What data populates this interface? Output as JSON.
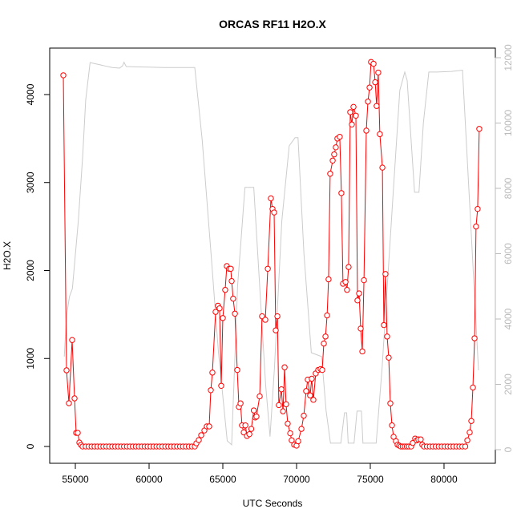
{
  "chart_data": {
    "type": "line",
    "title": "ORCAS RF11 H2O.X",
    "x_label": "UTC Seconds",
    "y_label": "H2O.X",
    "xlim": [
      53260,
      83480
    ],
    "xticks": [
      55000,
      60000,
      65000,
      70000,
      75000,
      80000
    ],
    "ylim": [
      -191,
      4528
    ],
    "yticks": [
      0,
      1000,
      2000,
      3000,
      4000
    ],
    "y2lim": [
      -417,
      12294
    ],
    "y2ticks": [
      0,
      2000,
      4000,
      6000,
      8000,
      10000,
      12000
    ],
    "y2_color": "#bbbbbb",
    "series": [
      {
        "color": "#ff0000",
        "marker": "circle",
        "axis": "y",
        "x": [
          54185,
          54402,
          54565,
          54783,
          54946,
          55054,
          55163,
          55272,
          55380,
          55489,
          55700,
          55900,
          56100,
          56300,
          56500,
          56700,
          56900,
          57100,
          57300,
          57500,
          57700,
          57900,
          58100,
          58300,
          58500,
          58700,
          58900,
          59100,
          59300,
          59500,
          59700,
          59900,
          60100,
          60300,
          60500,
          60700,
          60900,
          61100,
          61300,
          61500,
          61700,
          61900,
          62100,
          62300,
          62500,
          62700,
          62900,
          63100,
          63207,
          63370,
          63533,
          63750,
          63913,
          64076,
          64185,
          64293,
          64510,
          64670,
          64780,
          64890,
          65000,
          65160,
          65270,
          65430,
          65540,
          65600,
          65700,
          65820,
          65980,
          66090,
          66200,
          66300,
          66420,
          66530,
          66640,
          66800,
          66930,
          67100,
          67200,
          67280,
          67500,
          67660,
          67880,
          68050,
          68260,
          68370,
          68480,
          68590,
          68700,
          68800,
          68970,
          69080,
          69190,
          69290,
          69400,
          69570,
          69670,
          69840,
          70000,
          70110,
          70330,
          70490,
          70650,
          70760,
          70920,
          71030,
          71140,
          71300,
          71470,
          71630,
          71740,
          71850,
          71960,
          72070,
          72170,
          72280,
          72450,
          72550,
          72660,
          72770,
          72930,
          73040,
          73150,
          73320,
          73420,
          73530,
          73640,
          73750,
          73860,
          74020,
          74130,
          74240,
          74350,
          74460,
          74570,
          74730,
          74840,
          74950,
          75050,
          75220,
          75330,
          75430,
          75540,
          75650,
          75820,
          75920,
          76030,
          76140,
          76250,
          76360,
          76470,
          76580,
          76740,
          76850,
          76960,
          77070,
          77200,
          77340,
          77480,
          77620,
          77770,
          77880,
          78040,
          78150,
          78260,
          78420,
          78530,
          78640,
          78840,
          79040,
          79240,
          79440,
          79640,
          79840,
          80040,
          80240,
          80440,
          80640,
          80840,
          81040,
          81240,
          81440,
          81580,
          81740,
          81850,
          81960,
          82070,
          82170,
          82280,
          82390
        ],
        "values": [
          4219,
          866,
          492,
          1210,
          547,
          155,
          155,
          45,
          18,
          0,
          0,
          0,
          0,
          0,
          0,
          0,
          0,
          0,
          0,
          0,
          0,
          0,
          0,
          0,
          0,
          0,
          0,
          0,
          0,
          0,
          0,
          0,
          0,
          0,
          0,
          0,
          0,
          0,
          0,
          0,
          0,
          0,
          0,
          0,
          0,
          0,
          0,
          0,
          36,
          73,
          128,
          182,
          228,
          228,
          640,
          840,
          1530,
          1600,
          1570,
          690,
          1460,
          1780,
          2050,
          2020,
          2020,
          1880,
          1680,
          1510,
          870,
          450,
          490,
          240,
          160,
          240,
          120,
          140,
          200,
          410,
          330,
          340,
          570,
          1480,
          1440,
          2020,
          2820,
          2700,
          2660,
          1320,
          1480,
          470,
          650,
          400,
          900,
          480,
          260,
          150,
          70,
          20,
          10,
          60,
          200,
          350,
          630,
          760,
          580,
          770,
          530,
          830,
          870,
          880,
          870,
          1170,
          1250,
          1490,
          1900,
          3100,
          3250,
          3320,
          3400,
          3500,
          3520,
          2880,
          1850,
          1870,
          1780,
          2040,
          3800,
          3660,
          3860,
          3760,
          1660,
          1740,
          1340,
          1080,
          1890,
          3590,
          3920,
          4080,
          4370,
          4350,
          4140,
          3870,
          4250,
          3550,
          3170,
          1380,
          1960,
          1250,
          1010,
          490,
          240,
          110,
          60,
          20,
          10,
          0,
          0,
          0,
          0,
          0,
          0,
          40,
          90,
          70,
          80,
          80,
          20,
          0,
          0,
          0,
          0,
          0,
          0,
          0,
          0,
          0,
          0,
          0,
          0,
          0,
          0,
          0,
          70,
          160,
          290,
          670,
          1230,
          2500,
          2700,
          3610
        ]
      },
      {
        "color": "#cccccc",
        "axis": "y2",
        "x": [
          54250,
          54400,
          54600,
          54800,
          55200,
          55500,
          55700,
          56000,
          56500,
          57000,
          57500,
          58000,
          58200,
          58300,
          58450,
          59000,
          60000,
          61000,
          62000,
          63100,
          63600,
          64200,
          64700,
          65300,
          65600,
          66000,
          66500,
          66800,
          67100,
          67500,
          67900,
          68200,
          68500,
          69000,
          69500,
          69900,
          70100,
          70500,
          71000,
          71700,
          72000,
          72300,
          73000,
          73250,
          73400,
          73500,
          73600,
          73900,
          74100,
          74400,
          74500,
          74600,
          74700,
          75400,
          75800,
          76500,
          77000,
          77340,
          77500,
          78000,
          78300,
          78600,
          78970,
          79500,
          80500,
          81250,
          81800,
          82340
        ],
        "values": [
          2850,
          4100,
          4690,
          4930,
          7000,
          9000,
          10700,
          11850,
          11800,
          11750,
          11700,
          11680,
          11750,
          11860,
          11730,
          11720,
          11710,
          11700,
          11700,
          11700,
          9500,
          6000,
          3000,
          270,
          150,
          5000,
          8030,
          8030,
          8030,
          5000,
          1990,
          400,
          2500,
          7000,
          9300,
          9550,
          9550,
          6000,
          2970,
          2850,
          1200,
          200,
          200,
          1130,
          1130,
          200,
          200,
          200,
          1180,
          1180,
          200,
          200,
          200,
          200,
          2500,
          7500,
          11000,
          11560,
          11300,
          7880,
          7880,
          10000,
          11560,
          11560,
          11580,
          11620,
          7000,
          2430
        ]
      }
    ]
  }
}
